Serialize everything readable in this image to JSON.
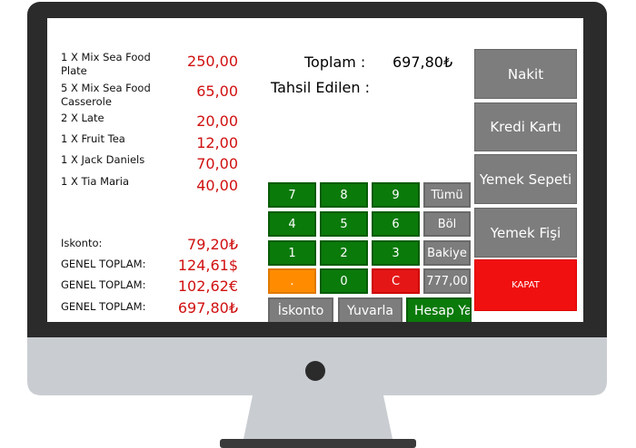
{
  "items": [
    {
      "name": "1 X Mix Sea Food Plate",
      "price": "250,00"
    },
    {
      "name": "5 X Mix Sea Food Casserole",
      "price": "65,00"
    },
    {
      "name": "2 X Late",
      "price": "20,00"
    },
    {
      "name": "1 X Fruit Tea",
      "price": "12,00"
    },
    {
      "name": "1 X Jack Daniels",
      "price": "70,00"
    },
    {
      "name": "1 X Tia Maria",
      "price": "40,00"
    }
  ],
  "summary": [
    {
      "label": "Iskonto:",
      "value": "79,20₺"
    },
    {
      "label": "GENEL TOPLAM:",
      "value": "124,61$"
    },
    {
      "label": "GENEL TOPLAM:",
      "value": "102,62€"
    },
    {
      "label": "GENEL TOPLAM:",
      "value": "697,80₺"
    }
  ],
  "total": {
    "label": "Toplam :",
    "value": "697,80₺"
  },
  "paid": {
    "label": "Tahsil Edilen :"
  },
  "keypad": [
    [
      "7",
      "8",
      "9",
      "Tümü"
    ],
    [
      "4",
      "5",
      "6",
      "Böl"
    ],
    [
      "1",
      "2",
      "3",
      "Bakiye"
    ],
    [
      ".",
      "0",
      "C",
      "777,00"
    ]
  ],
  "actions": [
    "İskonto",
    "Yuvarla",
    "Hesap Yaz"
  ],
  "payments": [
    "Nakit",
    "Kredi Kartı",
    "Yemek Sepeti",
    "Yemek Fişi",
    "KAPAT"
  ]
}
